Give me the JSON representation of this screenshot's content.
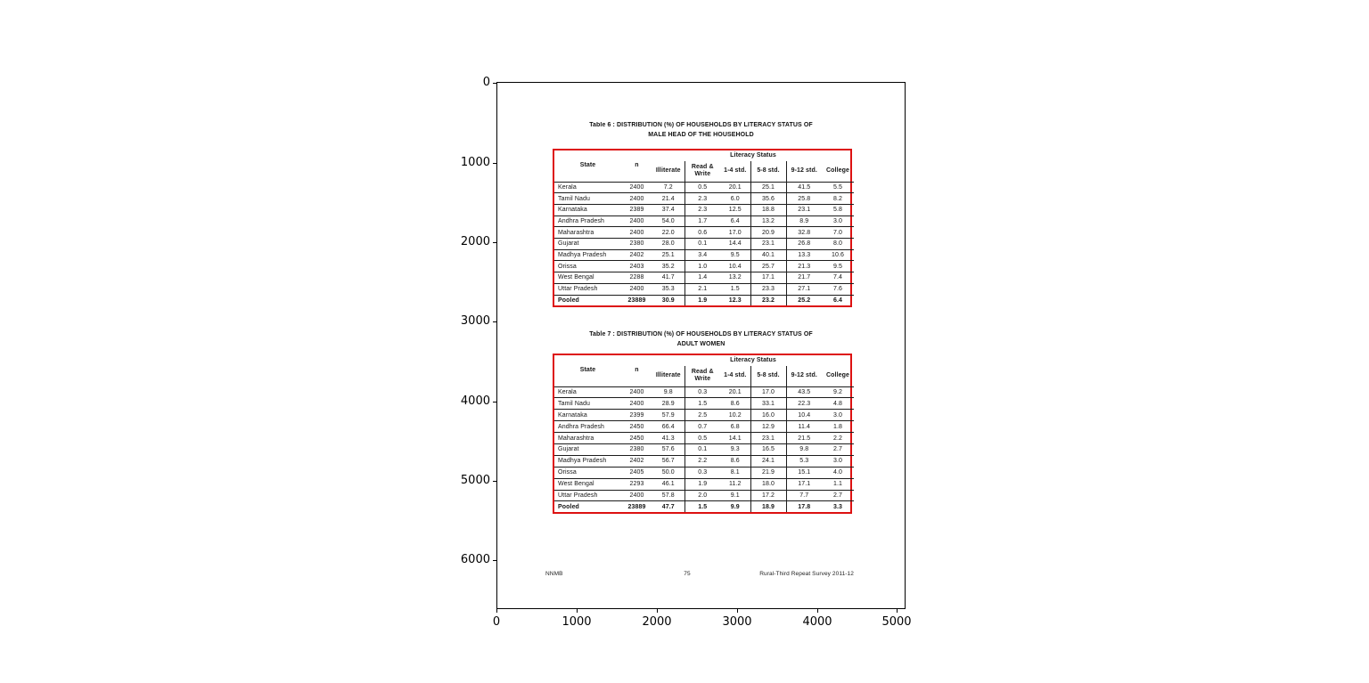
{
  "colors": {
    "table_border": "#dd1111",
    "ink": "#1a1a1a"
  },
  "axes": {
    "x_tick_labels": [
      "0",
      "1000",
      "2000",
      "3000",
      "4000",
      "5000"
    ],
    "y_tick_labels": [
      "0",
      "1000",
      "2000",
      "3000",
      "4000",
      "5000",
      "6000"
    ]
  },
  "document": {
    "footer_left": "NNMB",
    "footer_center": "75",
    "footer_right": "Rural-Third Repeat Survey 2011-12",
    "tables": [
      {
        "title_line1": "Table 6 : DISTRIBUTION (%) OF HOUSEHOLDS BY LITERACY STATUS OF",
        "title_line2": "MALE HEAD OF THE HOUSEHOLD",
        "group_header": "Literacy Status",
        "columns": [
          "State",
          "n",
          "Illiterate",
          "Read & Write",
          "1-4 std.",
          "5-8 std.",
          "9-12 std.",
          "College"
        ],
        "rows": [
          [
            "Kerala",
            "2400",
            "7.2",
            "0.5",
            "20.1",
            "25.1",
            "41.5",
            "5.5"
          ],
          [
            "Tamil Nadu",
            "2400",
            "21.4",
            "2.3",
            "6.0",
            "35.6",
            "25.8",
            "8.2"
          ],
          [
            "Karnataka",
            "2389",
            "37.4",
            "2.3",
            "12.5",
            "18.8",
            "23.1",
            "5.8"
          ],
          [
            "Andhra Pradesh",
            "2400",
            "54.0",
            "1.7",
            "6.4",
            "13.2",
            "8.9",
            "3.0"
          ],
          [
            "Maharashtra",
            "2400",
            "22.0",
            "0.6",
            "17.0",
            "20.9",
            "32.8",
            "7.0"
          ],
          [
            "Gujarat",
            "2380",
            "28.0",
            "0.1",
            "14.4",
            "23.1",
            "26.8",
            "8.0"
          ],
          [
            "Madhya Pradesh",
            "2402",
            "25.1",
            "3.4",
            "9.5",
            "40.1",
            "13.3",
            "10.6"
          ],
          [
            "Orissa",
            "2403",
            "35.2",
            "1.0",
            "10.4",
            "25.7",
            "21.3",
            "9.5"
          ],
          [
            "West Bengal",
            "2288",
            "41.7",
            "1.4",
            "13.2",
            "17.1",
            "21.7",
            "7.4"
          ],
          [
            "Uttar Pradesh",
            "2400",
            "35.3",
            "2.1",
            "1.5",
            "23.3",
            "27.1",
            "7.6"
          ]
        ],
        "pooled_row": [
          "Pooled",
          "23889",
          "30.9",
          "1.9",
          "12.3",
          "23.2",
          "25.2",
          "6.4"
        ]
      },
      {
        "title_line1": "Table 7 : DISTRIBUTION (%) OF HOUSEHOLDS BY LITERACY STATUS OF",
        "title_line2": "ADULT WOMEN",
        "group_header": "Literacy Status",
        "columns": [
          "State",
          "n",
          "Illiterate",
          "Read & Write",
          "1-4 std.",
          "5-8 std.",
          "9-12 std.",
          "College"
        ],
        "rows": [
          [
            "Kerala",
            "2400",
            "9.8",
            "0.3",
            "20.1",
            "17.0",
            "43.5",
            "9.2"
          ],
          [
            "Tamil Nadu",
            "2400",
            "28.9",
            "1.5",
            "8.6",
            "33.1",
            "22.3",
            "4.8"
          ],
          [
            "Karnataka",
            "2399",
            "57.9",
            "2.5",
            "10.2",
            "16.0",
            "10.4",
            "3.0"
          ],
          [
            "Andhra Pradesh",
            "2450",
            "66.4",
            "0.7",
            "6.8",
            "12.9",
            "11.4",
            "1.8"
          ],
          [
            "Maharashtra",
            "2450",
            "41.3",
            "0.5",
            "14.1",
            "23.1",
            "21.5",
            "2.2"
          ],
          [
            "Gujarat",
            "2380",
            "57.6",
            "0.1",
            "9.3",
            "16.5",
            "9.8",
            "2.7"
          ],
          [
            "Madhya Pradesh",
            "2402",
            "56.7",
            "2.2",
            "8.6",
            "24.1",
            "5.3",
            "3.0"
          ],
          [
            "Orissa",
            "2405",
            "50.0",
            "0.3",
            "8.1",
            "21.9",
            "15.1",
            "4.0"
          ],
          [
            "West Bengal",
            "2293",
            "46.1",
            "1.9",
            "11.2",
            "18.0",
            "17.1",
            "1.1"
          ],
          [
            "Uttar Pradesh",
            "2400",
            "57.8",
            "2.0",
            "9.1",
            "17.2",
            "7.7",
            "2.7"
          ]
        ],
        "pooled_row": [
          "Pooled",
          "23889",
          "47.7",
          "1.5",
          "9.9",
          "18.9",
          "17.8",
          "3.3"
        ]
      }
    ]
  }
}
